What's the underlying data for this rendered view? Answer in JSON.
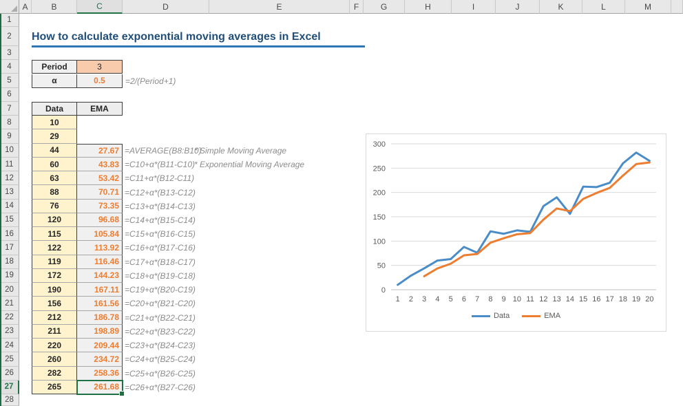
{
  "grid": {
    "columns": [
      "A",
      "B",
      "C",
      "D",
      "E",
      "F",
      "G",
      "H",
      "I",
      "J",
      "K",
      "L",
      "M"
    ],
    "row_count": 28,
    "selected_column": "C",
    "selected_row": 27,
    "selected_cell": "C27"
  },
  "title": {
    "text": "How to calculate exponential moving averages in Excel"
  },
  "params": {
    "period_label": "Period",
    "period_value": "3",
    "alpha_label": "α",
    "alpha_value": "0.5",
    "alpha_formula": "=2/(Period+1)"
  },
  "table": {
    "data_header": "Data",
    "ema_header": "EMA",
    "rows": [
      {
        "row": 8,
        "data": "10",
        "ema": "",
        "formula": "",
        "comment": ""
      },
      {
        "row": 9,
        "data": "29",
        "ema": "",
        "formula": "",
        "comment": ""
      },
      {
        "row": 10,
        "data": "44",
        "ema": "27.67",
        "formula": "=AVERAGE(B8:B10)",
        "comment": "* Simple Moving Average"
      },
      {
        "row": 11,
        "data": "60",
        "ema": "43.83",
        "formula": "=C10+α*(B11-C10)",
        "comment": "* Exponential Moving Average"
      },
      {
        "row": 12,
        "data": "63",
        "ema": "53.42",
        "formula": "=C11+α*(B12-C11)",
        "comment": ""
      },
      {
        "row": 13,
        "data": "88",
        "ema": "70.71",
        "formula": "=C12+α*(B13-C12)",
        "comment": ""
      },
      {
        "row": 14,
        "data": "76",
        "ema": "73.35",
        "formula": "=C13+α*(B14-C13)",
        "comment": ""
      },
      {
        "row": 15,
        "data": "120",
        "ema": "96.68",
        "formula": "=C14+α*(B15-C14)",
        "comment": ""
      },
      {
        "row": 16,
        "data": "115",
        "ema": "105.84",
        "formula": "=C15+α*(B16-C15)",
        "comment": ""
      },
      {
        "row": 17,
        "data": "122",
        "ema": "113.92",
        "formula": "=C16+α*(B17-C16)",
        "comment": ""
      },
      {
        "row": 18,
        "data": "119",
        "ema": "116.46",
        "formula": "=C17+α*(B18-C17)",
        "comment": ""
      },
      {
        "row": 19,
        "data": "172",
        "ema": "144.23",
        "formula": "=C18+α*(B19-C18)",
        "comment": ""
      },
      {
        "row": 20,
        "data": "190",
        "ema": "167.11",
        "formula": "=C19+α*(B20-C19)",
        "comment": ""
      },
      {
        "row": 21,
        "data": "156",
        "ema": "161.56",
        "formula": "=C20+α*(B21-C20)",
        "comment": ""
      },
      {
        "row": 22,
        "data": "212",
        "ema": "186.78",
        "formula": "=C21+α*(B22-C21)",
        "comment": ""
      },
      {
        "row": 23,
        "data": "211",
        "ema": "198.89",
        "formula": "=C22+α*(B23-C22)",
        "comment": ""
      },
      {
        "row": 24,
        "data": "220",
        "ema": "209.44",
        "formula": "=C23+α*(B24-C23)",
        "comment": ""
      },
      {
        "row": 25,
        "data": "260",
        "ema": "234.72",
        "formula": "=C24+α*(B25-C24)",
        "comment": ""
      },
      {
        "row": 26,
        "data": "282",
        "ema": "258.36",
        "formula": "=C25+α*(B26-C25)",
        "comment": ""
      },
      {
        "row": 27,
        "data": "265",
        "ema": "261.68",
        "formula": "=C26+α*(B27-C26)",
        "comment": ""
      }
    ]
  },
  "chart_data": {
    "type": "line",
    "x": [
      1,
      2,
      3,
      4,
      5,
      6,
      7,
      8,
      9,
      10,
      11,
      12,
      13,
      14,
      15,
      16,
      17,
      18,
      19,
      20
    ],
    "series": [
      {
        "name": "Data",
        "color": "#4A8CC7",
        "values": [
          10,
          29,
          44,
          60,
          63,
          88,
          76,
          120,
          115,
          122,
          119,
          172,
          190,
          156,
          212,
          211,
          220,
          260,
          282,
          265
        ]
      },
      {
        "name": "EMA",
        "color": "#ED7D31",
        "values": [
          null,
          null,
          27.67,
          43.83,
          53.42,
          70.71,
          73.35,
          96.68,
          105.84,
          113.92,
          116.46,
          144.23,
          167.11,
          161.56,
          186.78,
          198.89,
          209.44,
          234.72,
          258.36,
          261.68
        ]
      }
    ],
    "title": "",
    "xlabel": "",
    "ylabel": "",
    "ylim": [
      0,
      300
    ],
    "yticks": [
      0,
      50,
      100,
      150,
      200,
      250,
      300
    ],
    "grid": true,
    "legend_position": "bottom"
  },
  "colors": {
    "title_text": "#1F4E79",
    "title_underline": "#2E75B6",
    "accent_orange": "#ED7D31",
    "period_fill": "#F8CBAD",
    "data_fill": "#FFF3CD",
    "gray_fill": "#F0F0F0",
    "header_fill": "#EDEDED",
    "formula_text": "#8C8C8C",
    "selection_green": "#1E7145",
    "series_blue": "#4A8CC7"
  }
}
